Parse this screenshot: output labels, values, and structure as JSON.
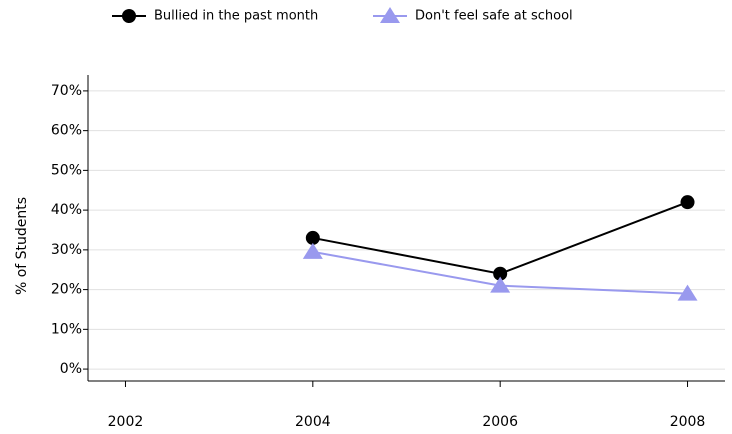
{
  "chart_data": {
    "type": "line",
    "y_label": "% of Students",
    "x": [
      2002,
      2004,
      2006,
      2008
    ],
    "series": [
      {
        "name": "Bullied in the past month",
        "color": "#000000",
        "marker": "circle",
        "values": [
          null,
          33,
          24,
          42
        ]
      },
      {
        "name": "Don't feel safe at school",
        "color": "#9999ee",
        "marker": "triangle",
        "values": [
          null,
          29.5,
          21,
          19
        ]
      }
    ],
    "xlim": [
      2001.6,
      2008.4
    ],
    "xticks": [
      2002,
      2004,
      2006,
      2008
    ],
    "ylim": [
      -3,
      74
    ],
    "yticks": [
      {
        "value": 0,
        "label": "0%"
      },
      {
        "value": 10,
        "label": "10%"
      },
      {
        "value": 20,
        "label": "20%"
      },
      {
        "value": 30,
        "label": "30%"
      },
      {
        "value": 40,
        "label": "40%"
      },
      {
        "value": 50,
        "label": "50%"
      },
      {
        "value": 60,
        "label": "60%"
      },
      {
        "value": 70,
        "label": "70%"
      }
    ],
    "grid": true,
    "legend": "top"
  }
}
